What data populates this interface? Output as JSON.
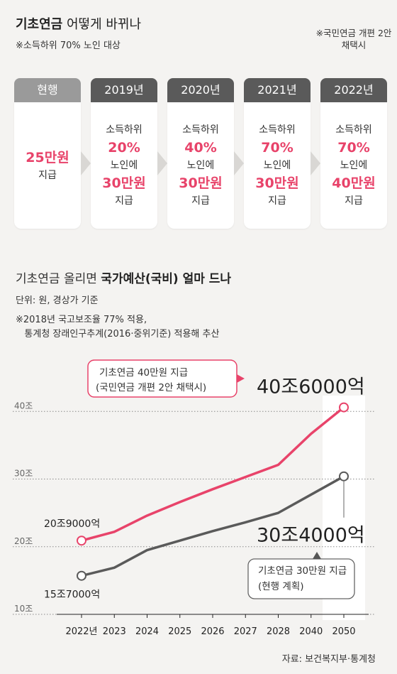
{
  "header": {
    "title_bold": "기초연금",
    "title_rest": " 어떻게 바뀌나",
    "subtitle": "※소득하위 70% 노인 대상",
    "note": "※국민연금 개편 2안 채택시"
  },
  "stages": [
    {
      "label": "현행",
      "lines": [
        {
          "text": "25만원",
          "accent": true
        },
        {
          "text": "지급",
          "accent": false
        }
      ]
    },
    {
      "label": "2019년",
      "lines": [
        {
          "text": "소득하위",
          "accent": false
        },
        {
          "text": "20%",
          "accent": true
        },
        {
          "text": "노인에",
          "accent": false
        },
        {
          "text": "30만원",
          "accent": true
        },
        {
          "text": "지급",
          "accent": false
        }
      ]
    },
    {
      "label": "2020년",
      "lines": [
        {
          "text": "소득하위",
          "accent": false
        },
        {
          "text": "40%",
          "accent": true
        },
        {
          "text": "노인에",
          "accent": false
        },
        {
          "text": "30만원",
          "accent": true
        },
        {
          "text": "지급",
          "accent": false
        }
      ]
    },
    {
      "label": "2021년",
      "lines": [
        {
          "text": "소득하위",
          "accent": false
        },
        {
          "text": "70%",
          "accent": true
        },
        {
          "text": "노인에",
          "accent": false
        },
        {
          "text": "30만원",
          "accent": true
        },
        {
          "text": "지급",
          "accent": false
        }
      ]
    },
    {
      "label": "2022년",
      "lines": [
        {
          "text": "소득하위",
          "accent": false
        },
        {
          "text": "70%",
          "accent": true
        },
        {
          "text": "노인에",
          "accent": false
        },
        {
          "text": "40만원",
          "accent": true
        },
        {
          "text": "지급",
          "accent": false
        }
      ]
    }
  ],
  "section2": {
    "title_normal": "기초연금 올리면 ",
    "title_bold": "국가예산(국비) 얼마 드나",
    "unit": "단위: 원, 경상가 기준",
    "note": "※2018년 국고보조율 77% 적용,\n   통계청 장래인구추계(2016·중위기준) 적용해 추산"
  },
  "chart_data": {
    "type": "line",
    "x": [
      "2022년",
      "2023",
      "2024",
      "2025",
      "2026",
      "2027",
      "2028",
      "2040",
      "2050"
    ],
    "y_ticks": [
      "10조",
      "20조",
      "30조",
      "40조"
    ],
    "y_tick_values": [
      10,
      20,
      30,
      40
    ],
    "ylim": [
      10,
      41.5
    ],
    "grid": "dotted horizontal",
    "series": [
      {
        "name": "기초연금 40만원 지급 (국민연금 개편 2안 채택시)",
        "label_line1": "기초연금 40만원 지급",
        "label_line2": "(국민연금 개편 2안 채택시)",
        "color": "#e8436a",
        "values": [
          20.9,
          22.2,
          24.6,
          26.6,
          28.5,
          30.3,
          32.1,
          36.7,
          40.6
        ],
        "start_label": "20조9000억",
        "end_label": "40조6000억"
      },
      {
        "name": "기초연금 30만원 지급 (현행 계획)",
        "label_line1": "기초연금 30만원 지급",
        "label_line2": "(현행 계획)",
        "color": "#5a5a5a",
        "values": [
          15.7,
          16.9,
          19.5,
          20.9,
          22.3,
          23.6,
          25.0,
          27.7,
          30.4
        ],
        "start_label": "15조7000억",
        "end_label": "30조4000억"
      }
    ]
  },
  "source": "자료: 보건복지부·통계청"
}
